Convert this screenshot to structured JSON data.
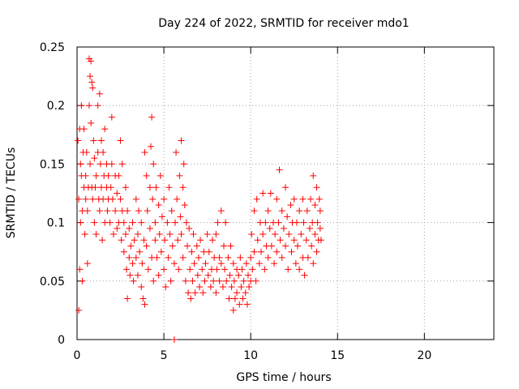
{
  "chart_data": {
    "type": "scatter",
    "title": "Day 224 of 2022, SRMTID for receiver mdo1",
    "xlabel": "GPS time / hours",
    "ylabel": "SRMTID / TECUs",
    "xlim": [
      0,
      24
    ],
    "ylim": [
      0,
      0.25
    ],
    "xticks": [
      0,
      5,
      10,
      15,
      20
    ],
    "xtick_labels": [
      "0",
      "5",
      "10",
      "15",
      "20"
    ],
    "yticks": [
      0,
      0.05,
      0.1,
      0.15,
      0.2,
      0.25
    ],
    "ytick_labels": [
      "0",
      "0.05",
      "0.1",
      "0.15",
      "0.2",
      "0.25"
    ],
    "grid": true,
    "marker": "plus",
    "series": [
      {
        "name": "SRMTID",
        "color": "#ff0000",
        "points": [
          [
            0.05,
            0.17
          ],
          [
            0.1,
            0.12
          ],
          [
            0.1,
            0.025
          ],
          [
            0.15,
            0.18
          ],
          [
            0.15,
            0.06
          ],
          [
            0.2,
            0.15
          ],
          [
            0.2,
            0.1
          ],
          [
            0.25,
            0.2
          ],
          [
            0.25,
            0.14
          ],
          [
            0.3,
            0.11
          ],
          [
            0.3,
            0.05
          ],
          [
            0.35,
            0.16
          ],
          [
            0.4,
            0.18
          ],
          [
            0.4,
            0.13
          ],
          [
            0.45,
            0.09
          ],
          [
            0.5,
            0.14
          ],
          [
            0.5,
            0.12
          ],
          [
            0.55,
            0.16
          ],
          [
            0.6,
            0.065
          ],
          [
            0.6,
            0.11
          ],
          [
            0.65,
            0.13
          ],
          [
            0.7,
            0.24
          ],
          [
            0.7,
            0.2
          ],
          [
            0.75,
            0.225
          ],
          [
            0.75,
            0.15
          ],
          [
            0.8,
            0.238
          ],
          [
            0.8,
            0.185
          ],
          [
            0.85,
            0.22
          ],
          [
            0.85,
            0.13
          ],
          [
            0.9,
            0.215
          ],
          [
            0.9,
            0.12
          ],
          [
            0.95,
            0.17
          ],
          [
            1.0,
            0.155
          ],
          [
            1.0,
            0.1
          ],
          [
            1.05,
            0.13
          ],
          [
            1.1,
            0.14
          ],
          [
            1.1,
            0.09
          ],
          [
            1.2,
            0.2
          ],
          [
            1.2,
            0.16
          ],
          [
            1.25,
            0.12
          ],
          [
            1.3,
            0.21
          ],
          [
            1.3,
            0.11
          ],
          [
            1.35,
            0.15
          ],
          [
            1.4,
            0.17
          ],
          [
            1.4,
            0.13
          ],
          [
            1.45,
            0.085
          ],
          [
            1.5,
            0.16
          ],
          [
            1.5,
            0.12
          ],
          [
            1.55,
            0.14
          ],
          [
            1.6,
            0.18
          ],
          [
            1.6,
            0.1
          ],
          [
            1.7,
            0.13
          ],
          [
            1.7,
            0.15
          ],
          [
            1.75,
            0.11
          ],
          [
            1.8,
            0.14
          ],
          [
            1.8,
            0.12
          ],
          [
            1.9,
            0.1
          ],
          [
            1.95,
            0.13
          ],
          [
            2.0,
            0.19
          ],
          [
            2.0,
            0.15
          ],
          [
            2.05,
            0.12
          ],
          [
            2.1,
            0.09
          ],
          [
            2.2,
            0.14
          ],
          [
            2.2,
            0.11
          ],
          [
            2.3,
            0.125
          ],
          [
            2.3,
            0.095
          ],
          [
            2.4,
            0.14
          ],
          [
            2.4,
            0.1
          ],
          [
            2.5,
            0.17
          ],
          [
            2.5,
            0.12
          ],
          [
            2.55,
            0.085
          ],
          [
            2.6,
            0.15
          ],
          [
            2.6,
            0.11
          ],
          [
            2.7,
            0.1
          ],
          [
            2.7,
            0.075
          ],
          [
            2.8,
            0.13
          ],
          [
            2.8,
            0.09
          ],
          [
            2.85,
            0.06
          ],
          [
            2.9,
            0.035
          ],
          [
            2.9,
            0.11
          ],
          [
            3.0,
            0.07
          ],
          [
            3.0,
            0.095
          ],
          [
            3.05,
            0.055
          ],
          [
            3.1,
            0.08
          ],
          [
            3.2,
            0.065
          ],
          [
            3.2,
            0.1
          ],
          [
            3.25,
            0.05
          ],
          [
            3.3,
            0.085
          ],
          [
            3.4,
            0.12
          ],
          [
            3.4,
            0.07
          ],
          [
            3.5,
            0.09
          ],
          [
            3.5,
            0.055
          ],
          [
            3.55,
            0.11
          ],
          [
            3.6,
            0.075
          ],
          [
            3.7,
            0.045
          ],
          [
            3.7,
            0.1
          ],
          [
            3.75,
            0.065
          ],
          [
            3.8,
            0.035
          ],
          [
            3.85,
            0.085
          ],
          [
            3.9,
            0.03
          ],
          [
            3.9,
            0.16
          ],
          [
            4.0,
            0.14
          ],
          [
            4.0,
            0.08
          ],
          [
            4.05,
            0.11
          ],
          [
            4.1,
            0.06
          ],
          [
            4.2,
            0.13
          ],
          [
            4.2,
            0.095
          ],
          [
            4.25,
            0.165
          ],
          [
            4.3,
            0.19
          ],
          [
            4.3,
            0.07
          ],
          [
            4.35,
            0.12
          ],
          [
            4.4,
            0.15
          ],
          [
            4.4,
            0.05
          ],
          [
            4.5,
            0.1
          ],
          [
            4.5,
            0.085
          ],
          [
            4.55,
            0.13
          ],
          [
            4.6,
            0.07
          ],
          [
            4.7,
            0.115
          ],
          [
            4.7,
            0.055
          ],
          [
            4.75,
            0.09
          ],
          [
            4.8,
            0.14
          ],
          [
            4.85,
            0.075
          ],
          [
            4.9,
            0.105
          ],
          [
            5.0,
            0.06
          ],
          [
            5.0,
            0.12
          ],
          [
            5.05,
            0.085
          ],
          [
            5.1,
            0.045
          ],
          [
            5.2,
            0.1
          ],
          [
            5.25,
            0.07
          ],
          [
            5.3,
            0.13
          ],
          [
            5.35,
            0.09
          ],
          [
            5.4,
            0.05
          ],
          [
            5.45,
            0.11
          ],
          [
            5.5,
            0.08
          ],
          [
            5.6,
            0.0
          ],
          [
            5.6,
            0.065
          ],
          [
            5.65,
            0.1
          ],
          [
            5.7,
            0.16
          ],
          [
            5.75,
            0.12
          ],
          [
            5.8,
            0.085
          ],
          [
            5.85,
            0.06
          ],
          [
            5.9,
            0.14
          ],
          [
            5.95,
            0.105
          ],
          [
            6.0,
            0.17
          ],
          [
            6.0,
            0.09
          ],
          [
            6.1,
            0.13
          ],
          [
            6.1,
            0.07
          ],
          [
            6.15,
            0.15
          ],
          [
            6.2,
            0.115
          ],
          [
            6.25,
            0.05
          ],
          [
            6.3,
            0.1
          ],
          [
            6.35,
            0.08
          ],
          [
            6.4,
            0.04
          ],
          [
            6.45,
            0.095
          ],
          [
            6.5,
            0.06
          ],
          [
            6.55,
            0.035
          ],
          [
            6.6,
            0.075
          ],
          [
            6.65,
            0.05
          ],
          [
            6.7,
            0.09
          ],
          [
            6.75,
            0.065
          ],
          [
            6.8,
            0.04
          ],
          [
            6.9,
            0.08
          ],
          [
            6.95,
            0.055
          ],
          [
            7.0,
            0.07
          ],
          [
            7.05,
            0.045
          ],
          [
            7.1,
            0.085
          ],
          [
            7.2,
            0.06
          ],
          [
            7.25,
            0.04
          ],
          [
            7.3,
            0.075
          ],
          [
            7.35,
            0.05
          ],
          [
            7.4,
            0.065
          ],
          [
            7.5,
            0.09
          ],
          [
            7.55,
            0.055
          ],
          [
            7.6,
            0.075
          ],
          [
            7.7,
            0.045
          ],
          [
            7.75,
            0.06
          ],
          [
            7.8,
            0.085
          ],
          [
            7.85,
            0.05
          ],
          [
            7.9,
            0.07
          ],
          [
            8.0,
            0.04
          ],
          [
            8.0,
            0.09
          ],
          [
            8.05,
            0.06
          ],
          [
            8.1,
            0.1
          ],
          [
            8.2,
            0.07
          ],
          [
            8.2,
            0.05
          ],
          [
            8.3,
            0.11
          ],
          [
            8.3,
            0.065
          ],
          [
            8.4,
            0.045
          ],
          [
            8.45,
            0.08
          ],
          [
            8.5,
            0.06
          ],
          [
            8.55,
            0.1
          ],
          [
            8.6,
            0.05
          ],
          [
            8.7,
            0.07
          ],
          [
            8.75,
            0.035
          ],
          [
            8.8,
            0.055
          ],
          [
            8.85,
            0.08
          ],
          [
            8.9,
            0.045
          ],
          [
            9.0,
            0.065
          ],
          [
            9.0,
            0.025
          ],
          [
            9.05,
            0.05
          ],
          [
            9.1,
            0.035
          ],
          [
            9.2,
            0.06
          ],
          [
            9.2,
            0.04
          ],
          [
            9.3,
            0.055
          ],
          [
            9.35,
            0.03
          ],
          [
            9.4,
            0.07
          ],
          [
            9.45,
            0.045
          ],
          [
            9.5,
            0.06
          ],
          [
            9.55,
            0.035
          ],
          [
            9.6,
            0.05
          ],
          [
            9.7,
            0.04
          ],
          [
            9.75,
            0.065
          ],
          [
            9.8,
            0.03
          ],
          [
            9.85,
            0.055
          ],
          [
            9.9,
            0.045
          ],
          [
            10.0,
            0.07
          ],
          [
            10.0,
            0.05
          ],
          [
            10.05,
            0.09
          ],
          [
            10.1,
            0.06
          ],
          [
            10.2,
            0.11
          ],
          [
            10.2,
            0.075
          ],
          [
            10.3,
            0.05
          ],
          [
            10.35,
            0.12
          ],
          [
            10.4,
            0.085
          ],
          [
            10.5,
            0.065
          ],
          [
            10.55,
            0.1
          ],
          [
            10.6,
            0.075
          ],
          [
            10.7,
            0.125
          ],
          [
            10.7,
            0.09
          ],
          [
            10.8,
            0.06
          ],
          [
            10.85,
            0.1
          ],
          [
            10.9,
            0.08
          ],
          [
            11.0,
            0.11
          ],
          [
            11.0,
            0.07
          ],
          [
            11.1,
            0.095
          ],
          [
            11.15,
            0.125
          ],
          [
            11.2,
            0.08
          ],
          [
            11.3,
            0.1
          ],
          [
            11.35,
            0.065
          ],
          [
            11.4,
            0.09
          ],
          [
            11.5,
            0.12
          ],
          [
            11.5,
            0.075
          ],
          [
            11.6,
            0.1
          ],
          [
            11.65,
            0.145
          ],
          [
            11.7,
            0.085
          ],
          [
            11.8,
            0.11
          ],
          [
            11.8,
            0.07
          ],
          [
            11.9,
            0.095
          ],
          [
            12.0,
            0.13
          ],
          [
            12.0,
            0.08
          ],
          [
            12.1,
            0.105
          ],
          [
            12.15,
            0.06
          ],
          [
            12.2,
            0.09
          ],
          [
            12.3,
            0.115
          ],
          [
            12.35,
            0.075
          ],
          [
            12.4,
            0.1
          ],
          [
            12.5,
            0.12
          ],
          [
            12.5,
            0.085
          ],
          [
            12.6,
            0.065
          ],
          [
            12.65,
            0.1
          ],
          [
            12.7,
            0.08
          ],
          [
            12.8,
            0.11
          ],
          [
            12.8,
            0.06
          ],
          [
            12.9,
            0.09
          ],
          [
            13.0,
            0.12
          ],
          [
            13.0,
            0.07
          ],
          [
            13.05,
            0.1
          ],
          [
            13.1,
            0.055
          ],
          [
            13.2,
            0.085
          ],
          [
            13.25,
            0.11
          ],
          [
            13.3,
            0.07
          ],
          [
            13.4,
            0.095
          ],
          [
            13.45,
            0.12
          ],
          [
            13.5,
            0.08
          ],
          [
            13.55,
            0.1
          ],
          [
            13.6,
            0.14
          ],
          [
            13.6,
            0.065
          ],
          [
            13.7,
            0.09
          ],
          [
            13.7,
            0.115
          ],
          [
            13.8,
            0.13
          ],
          [
            13.8,
            0.075
          ],
          [
            13.85,
            0.1
          ],
          [
            13.9,
            0.085
          ],
          [
            13.95,
            0.12
          ],
          [
            14.0,
            0.095
          ],
          [
            14.0,
            0.11
          ],
          [
            14.05,
            0.085
          ]
        ]
      }
    ]
  }
}
